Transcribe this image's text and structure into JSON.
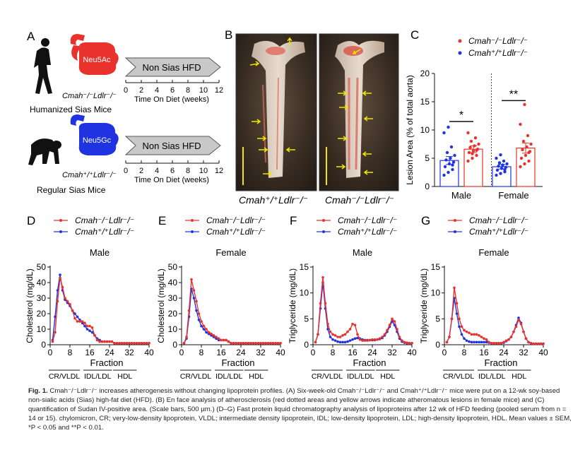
{
  "panel_a": {
    "letter": "A",
    "timeline_title_top": "Non Sias HFD",
    "timeline_title_bottom": "Non Sias HFD",
    "sia_top": "Neu5Ac",
    "sia_bottom": "Neu5Gc",
    "mouse_top": "Cmah⁻/⁻Ldlr⁻/⁻",
    "mouse_bottom": "Cmah⁺/⁺Ldlr⁻/⁻",
    "group_top": "Humanized Sias Mice",
    "group_bottom": "Regular Sias Mice",
    "ticks": [
      "0",
      "2",
      "4",
      "6",
      "8",
      "10",
      "12"
    ],
    "axis_label": "Time On Diet (weeks)",
    "colors": {
      "red": "#e8322b",
      "blue": "#1f33e0",
      "arrow": "#c8c8c8"
    }
  },
  "panel_b": {
    "letter": "B",
    "label_left": "Cmah⁺/⁺Ldlr⁻/⁻",
    "label_right": "Cmah⁻/⁻Ldlr⁻/⁻"
  },
  "panel_c": {
    "letter": "C",
    "chart_data": {
      "type": "bar",
      "ylabel": "Lesion Area (% of total aorta)",
      "ylim": [
        0,
        20
      ],
      "yticks": [
        0,
        5,
        10,
        15,
        20
      ],
      "categories": [
        "Male",
        "Female"
      ],
      "series": [
        {
          "name": "Cmah⁻/⁻Ldlr⁻/⁻",
          "color": "#e8322b",
          "means": [
            6.6,
            6.8
          ],
          "sem": [
            0.6,
            0.9
          ],
          "points": [
            [
              4.5,
              5.0,
              5.5,
              6.0,
              6.3,
              6.6,
              6.9,
              7.2,
              7.5,
              8.0,
              8.6,
              9.5,
              5.8,
              6.4
            ],
            [
              3.5,
              4.0,
              4.5,
              5.0,
              5.5,
              6.2,
              6.5,
              7.0,
              7.5,
              8.0,
              9.0,
              11.0,
              14.5,
              6.0
            ]
          ]
        },
        {
          "name": "Cmah⁺/⁺Ldlr⁻/⁻",
          "color": "#1f33e0",
          "means": [
            4.6,
            3.5
          ],
          "sem": [
            0.7,
            0.4
          ],
          "points": [
            [
              2.0,
              2.5,
              3.0,
              3.5,
              4.0,
              4.3,
              4.7,
              5.0,
              5.5,
              6.0,
              7.0,
              9.5,
              10.5,
              3.8
            ],
            [
              2.0,
              2.3,
              2.6,
              2.9,
              3.2,
              3.4,
              3.6,
              3.8,
              4.0,
              4.2,
              4.5,
              5.0,
              5.6,
              3.0
            ]
          ]
        }
      ],
      "significance": [
        "*",
        "**"
      ],
      "legend": [
        "Cmah⁻/⁻Ldlr⁻/⁻",
        "Cmah⁺/⁺Ldlr⁻/⁻"
      ]
    }
  },
  "fplc": {
    "legend_red": "Cmah⁻/⁻Ldlr⁻/⁻",
    "legend_blue": "Cmah⁺/⁺Ldlr⁻/⁻",
    "xlabel": "Fraction",
    "xticks": [
      "0",
      "8",
      "16",
      "24",
      "32",
      "40"
    ],
    "bands": [
      "CR/VLDL",
      "IDL/LDL",
      "HDL"
    ],
    "panels": [
      {
        "letter": "D",
        "title": "Male",
        "ylabel": "Cholesterol (mg/dL)",
        "ymax": 50,
        "yticks": [
          "0",
          "10",
          "20",
          "30",
          "40",
          "50"
        ],
        "chart_data": {
          "type": "line",
          "x": [
            1,
            2,
            3,
            4,
            5,
            6,
            7,
            8,
            9,
            10,
            11,
            12,
            13,
            14,
            15,
            16,
            17,
            18,
            19,
            20,
            21,
            22,
            23,
            24,
            25,
            26,
            27,
            28,
            29,
            30,
            31,
            32,
            33,
            34,
            35,
            36,
            37,
            38,
            39,
            40
          ],
          "series": [
            {
              "name": "Cmah-/-Ldlr-/-",
              "color": "#e8322b",
              "values": [
                2,
                8,
                28,
                43,
                37,
                30,
                28,
                26,
                22,
                17,
                15,
                15,
                15,
                14,
                12,
                12,
                11,
                6,
                3,
                2,
                2,
                2,
                2,
                2,
                2,
                1,
                1,
                1,
                1,
                1,
                1,
                1,
                1,
                1,
                1,
                1,
                1,
                1,
                1,
                1
              ]
            },
            {
              "name": "Cmah+/+Ldlr-/-",
              "color": "#1f33e0",
              "values": [
                3,
                18,
                35,
                45,
                35,
                29,
                27,
                25,
                22,
                20,
                18,
                16,
                14,
                12,
                10,
                9,
                8,
                6,
                4,
                3,
                2,
                2,
                2,
                2,
                2,
                1,
                1,
                1,
                1,
                1,
                1,
                1,
                1,
                1,
                1,
                1,
                1,
                1,
                1,
                1
              ]
            }
          ]
        }
      },
      {
        "letter": "E",
        "title": "Female",
        "ylabel": "Cholesterol (mg/dL)",
        "ymax": 50,
        "yticks": [
          "0",
          "10",
          "20",
          "30",
          "40",
          "50"
        ],
        "chart_data": {
          "type": "line",
          "x": [
            1,
            2,
            3,
            4,
            5,
            6,
            7,
            8,
            9,
            10,
            11,
            12,
            13,
            14,
            15,
            16,
            17,
            18,
            19,
            20,
            21,
            22,
            23,
            24,
            25,
            26,
            27,
            28,
            29,
            30,
            31,
            32,
            33,
            34,
            35,
            36,
            37,
            38,
            39,
            40
          ],
          "series": [
            {
              "name": "Cmah-/-Ldlr-/-",
              "color": "#e8322b",
              "values": [
                1,
                5,
                22,
                42,
                35,
                28,
                20,
                15,
                12,
                10,
                8,
                7,
                6,
                5,
                4,
                3,
                3,
                3,
                2,
                1,
                1,
                1,
                1,
                1,
                1,
                1,
                1,
                1,
                1,
                1,
                1,
                1,
                1,
                1,
                1,
                1,
                1,
                1,
                1,
                1
              ]
            },
            {
              "name": "Cmah+/+Ldlr-/-",
              "color": "#1f33e0",
              "values": [
                1,
                4,
                18,
                36,
                30,
                22,
                16,
                12,
                10,
                8,
                7,
                6,
                5,
                4,
                3,
                3,
                3,
                3,
                2,
                1,
                1,
                1,
                1,
                1,
                1,
                1,
                1,
                1,
                1,
                1,
                1,
                1,
                1,
                1,
                1,
                1,
                1,
                1,
                1,
                1
              ]
            }
          ]
        }
      },
      {
        "letter": "F",
        "title": "Male",
        "ylabel": "Triglyceride (mg/dL)",
        "ymax": 15,
        "yticks": [
          "0",
          "5",
          "10",
          "15"
        ],
        "chart_data": {
          "type": "line",
          "x": [
            1,
            2,
            3,
            4,
            5,
            6,
            7,
            8,
            9,
            10,
            11,
            12,
            13,
            14,
            15,
            16,
            17,
            18,
            19,
            20,
            21,
            22,
            23,
            24,
            25,
            26,
            27,
            28,
            29,
            30,
            31,
            32,
            33,
            34,
            35,
            36,
            37,
            38,
            39,
            40
          ],
          "series": [
            {
              "name": "Cmah-/-Ldlr-/-",
              "color": "#e8322b",
              "values": [
                0.5,
                2,
                8,
                13,
                8,
                4,
                2.5,
                2,
                1.8,
                1.5,
                1.5,
                1.8,
                2,
                2.5,
                3,
                4,
                3.8,
                2,
                1,
                0.8,
                0.8,
                0.8,
                0.9,
                1,
                1,
                1,
                1.2,
                1.5,
                2,
                2.8,
                3.8,
                5,
                4.5,
                3,
                1.5,
                0.8,
                0.5,
                0.4,
                0.3,
                0.3
              ]
            },
            {
              "name": "Cmah+/+Ldlr-/-",
              "color": "#1f33e0",
              "values": [
                0.5,
                2,
                7,
                12,
                7,
                3,
                1.5,
                1,
                0.8,
                0.6,
                0.5,
                0.5,
                0.5,
                0.6,
                0.8,
                1,
                1.2,
                1.3,
                1.2,
                1,
                0.9,
                0.9,
                0.9,
                0.9,
                0.9,
                1,
                1.1,
                1.3,
                1.8,
                2.5,
                3.5,
                4.5,
                3.8,
                2.5,
                1.2,
                0.6,
                0.4,
                0.3,
                0.3,
                0.3
              ]
            }
          ]
        }
      },
      {
        "letter": "G",
        "title": "Female",
        "ylabel": "Triglyceride (mg/dL)",
        "ymax": 15,
        "yticks": [
          "0",
          "5",
          "10",
          "15"
        ],
        "chart_data": {
          "type": "line",
          "x": [
            1,
            2,
            3,
            4,
            5,
            6,
            7,
            8,
            9,
            10,
            11,
            12,
            13,
            14,
            15,
            16,
            17,
            18,
            19,
            20,
            21,
            22,
            23,
            24,
            25,
            26,
            27,
            28,
            29,
            30,
            31,
            32,
            33,
            34,
            35,
            36,
            37,
            38,
            39,
            40
          ],
          "series": [
            {
              "name": "Cmah-/-Ldlr-/-",
              "color": "#e8322b",
              "values": [
                0.5,
                1.5,
                5,
                11,
                8,
                5,
                3.5,
                2.8,
                2.5,
                2.3,
                2,
                2,
                2,
                1.8,
                1.5,
                1.2,
                1,
                0.5,
                0.3,
                0.3,
                0.3,
                0.3,
                0.3,
                0.5,
                0.8,
                1,
                1.5,
                2.5,
                3.5,
                4.8,
                4,
                2.5,
                1.2,
                0.5,
                0.3,
                0.2,
                0.2,
                0.2,
                0.2,
                0.2
              ]
            },
            {
              "name": "Cmah+/+Ldlr-/-",
              "color": "#1f33e0",
              "values": [
                0.5,
                1.5,
                5,
                9,
                6,
                3.5,
                2,
                1.2,
                0.8,
                0.6,
                0.5,
                0.5,
                0.5,
                0.5,
                0.5,
                0.5,
                0.5,
                0.4,
                0.3,
                0.3,
                0.3,
                0.3,
                0.3,
                0.4,
                0.7,
                1,
                1.5,
                2.5,
                3.8,
                5.2,
                4.2,
                2.5,
                1.2,
                0.5,
                0.3,
                0.2,
                0.2,
                0.2,
                0.2,
                0.2
              ]
            }
          ]
        }
      }
    ]
  },
  "caption": {
    "fig_label": "Fig. 1.",
    "text": " Cmah⁻/⁻Ldlr⁻/⁻ increases atherogenesis without changing lipoprotein profiles. (A) Six-week-old Cmah⁻/⁻Ldlr⁻/⁻ and Cmah⁺/⁺Ldlr⁻/⁻ mice were put on a 12-wk soy-based non-sialic acids (Sias) high-fat diet (HFD). (B) En face analysis of atherosclerosis (red dotted areas and yellow arrows indicate atheromatous lesions in female mice) and (C) quantification of Sudan IV-positive area. (Scale bars, 500 µm.) (D–G) Fast protein liquid chromatography analysis of lipoproteins after 12 wk of HFD feeding (pooled serum from n = 14 or 15). chylomicron, CR; very-low-density lipoprotein, VLDL; intermediate density lipoprotein, IDL; low-density lipoprotein, LDL; high-density lipoprotein, HDL. Mean values ± SEM, *P < 0.05 and **P < 0.01."
  }
}
